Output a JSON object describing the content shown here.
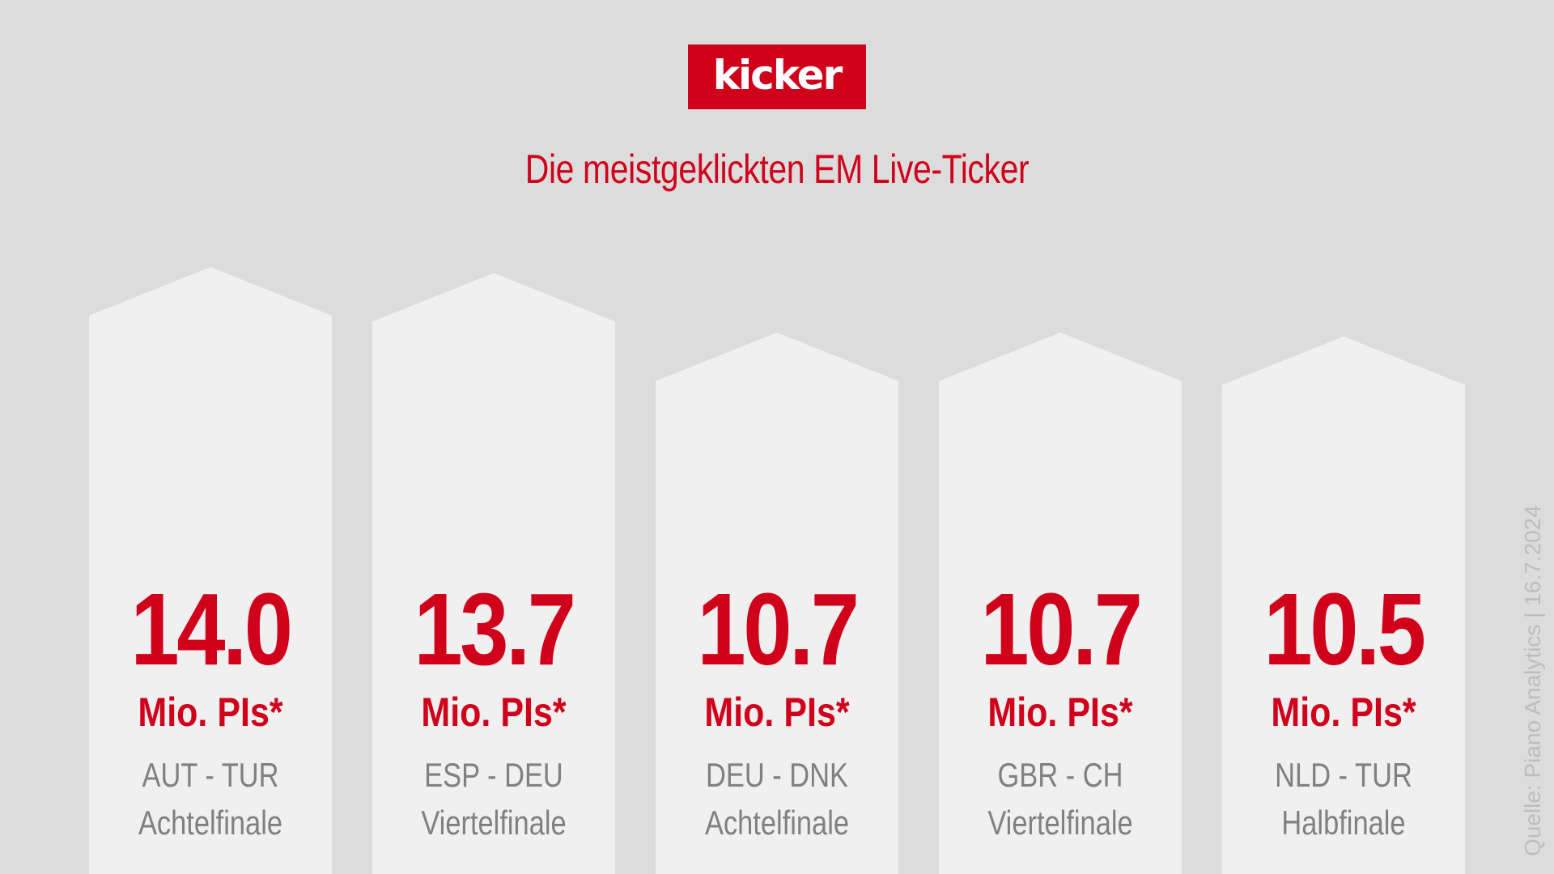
{
  "brand": {
    "logo_text": "kicker",
    "accent_color": "#d0021b"
  },
  "title": "Die meistgeklickten EM Live-Ticker",
  "source_note": "Quelle: Piano Analytics | 16.7.2024",
  "chart_data": {
    "type": "bar",
    "title": "Die meistgeklickten EM Live-Ticker",
    "unit_label": "Mio. PIs*",
    "categories": [
      "AUT - TUR",
      "ESP - DEU",
      "DEU - DNK",
      "GBR - CH",
      "NLD - TUR"
    ],
    "rounds": [
      "Achtelfinale",
      "Viertelfinale",
      "Achtelfinale",
      "Viertelfinale",
      "Halbfinale"
    ],
    "values": [
      14.0,
      13.7,
      10.7,
      10.7,
      10.5
    ],
    "value_labels": [
      "14.0",
      "13.7",
      "10.7",
      "10.7",
      "10.5"
    ],
    "bar_color": "#f0f0f0",
    "background_color": "#dcdcdc",
    "value_color": "#d0021b",
    "label_color": "#808080",
    "grid": false
  }
}
